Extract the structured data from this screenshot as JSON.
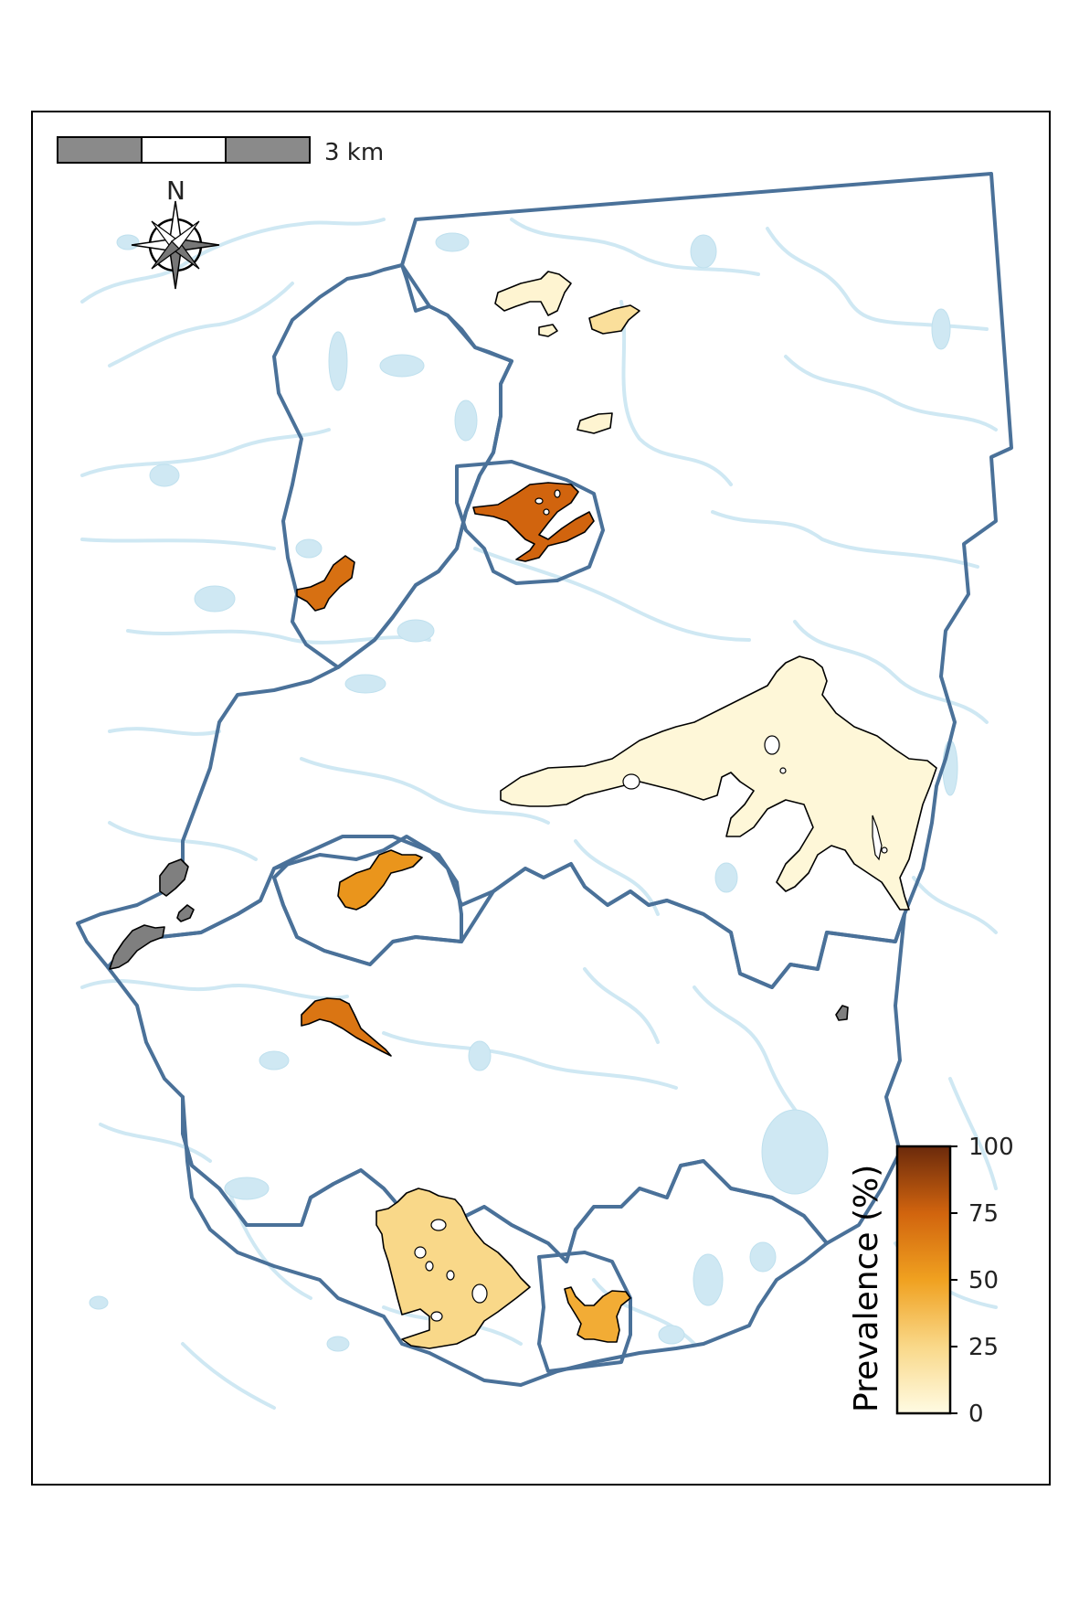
{
  "map": {
    "scale_bar_label": "3 km",
    "north_label": "N",
    "legend": {
      "title": "Prevalence (%)",
      "ticks": [
        "100",
        "75",
        "50",
        "25",
        "0"
      ],
      "range": [
        0,
        100
      ],
      "colors": [
        "#fffbe3",
        "#f9d889",
        "#f0a120",
        "#d1640e",
        "#6b2a0c"
      ]
    },
    "colors": {
      "catchment_boundary": "#4a7199",
      "streams": "#cfe8f3",
      "no_data_lake": "#7f7f7f",
      "frame": "#000000"
    },
    "lakes": [
      {
        "name": "north-lake-a",
        "prevalence": 5
      },
      {
        "name": "north-lake-b",
        "prevalence": 20
      },
      {
        "name": "north-lake-c",
        "prevalence": 5
      },
      {
        "name": "north-lake-d",
        "prevalence": 5
      },
      {
        "name": "central-branched-lake",
        "prevalence": 75
      },
      {
        "name": "west-small-lake",
        "prevalence": 70
      },
      {
        "name": "large-east-lake",
        "prevalence": 3
      },
      {
        "name": "middle-lake",
        "prevalence": 55
      },
      {
        "name": "south-west-lake",
        "prevalence": 68
      },
      {
        "name": "south-large-lake",
        "prevalence": 25
      },
      {
        "name": "south-small-lake",
        "prevalence": 45
      },
      {
        "name": "west-grey-lake-a",
        "prevalence": null
      },
      {
        "name": "west-grey-lake-b",
        "prevalence": null
      },
      {
        "name": "east-grey-lake",
        "prevalence": null
      }
    ]
  }
}
